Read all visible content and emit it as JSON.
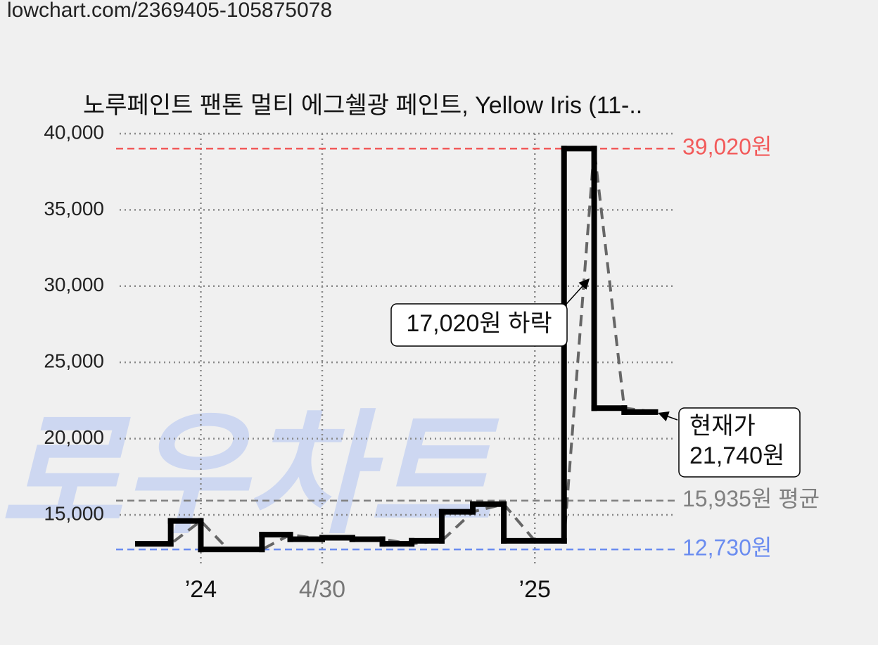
{
  "url": "lowchart.com/2369405-105875078",
  "chart_data": {
    "type": "step",
    "title": "노루페인트 팬톤 멀티 에그쉘광 페인트, Yellow Iris (11-..",
    "watermark": "로우차트",
    "ylim": [
      12000,
      40000
    ],
    "yticks": [
      {
        "value": 15000,
        "label": "15,000"
      },
      {
        "value": 20000,
        "label": "20,000"
      },
      {
        "value": 25000,
        "label": "25,000"
      },
      {
        "value": 30000,
        "label": "30,000"
      },
      {
        "value": 35000,
        "label": "35,000"
      },
      {
        "value": 40000,
        "label": "40,000"
      }
    ],
    "xlim": [
      -89,
      520
    ],
    "xticks": [
      {
        "value": 0,
        "label": "’24"
      },
      {
        "value": 133,
        "label": "4/30"
      },
      {
        "value": 366,
        "label": "’25"
      }
    ],
    "xtick_colors": [
      "#111111",
      "#777777",
      "#111111"
    ],
    "grid": true,
    "series": [
      {
        "type": "step",
        "color": "#000000",
        "x": [
          -69,
          -33,
          0,
          67,
          98,
          133,
          166,
          199,
          231,
          264,
          298,
          332,
          398,
          431,
          464,
          498
        ],
        "values": [
          13100,
          14600,
          12730,
          13700,
          13400,
          13500,
          13400,
          13100,
          13300,
          15200,
          15700,
          13300,
          39020,
          22000,
          21740,
          21740
        ]
      },
      {
        "type": "line",
        "color": "#666666",
        "x": [
          -69,
          -33,
          0,
          30,
          67,
          98,
          133,
          166,
          199,
          231,
          264,
          298,
          332,
          366,
          398,
          431,
          464,
          498
        ],
        "values": [
          13100,
          13100,
          14600,
          12730,
          12730,
          13700,
          13400,
          13500,
          13400,
          13100,
          13300,
          15200,
          15700,
          13300,
          13300,
          39020,
          22000,
          21740
        ]
      }
    ],
    "reference_lines": [
      {
        "value": 39020,
        "label": "39,020원",
        "color": "#f25a5a"
      },
      {
        "value": 15935,
        "label": "15,935원 평균",
        "color": "#808080"
      },
      {
        "value": 12730,
        "label": "12,730원",
        "color": "#6a8cf0"
      }
    ],
    "annotations": [
      {
        "lines": [
          "17,020원 하락"
        ]
      },
      {
        "lines": [
          "현재가",
          "21,740원"
        ]
      }
    ]
  }
}
